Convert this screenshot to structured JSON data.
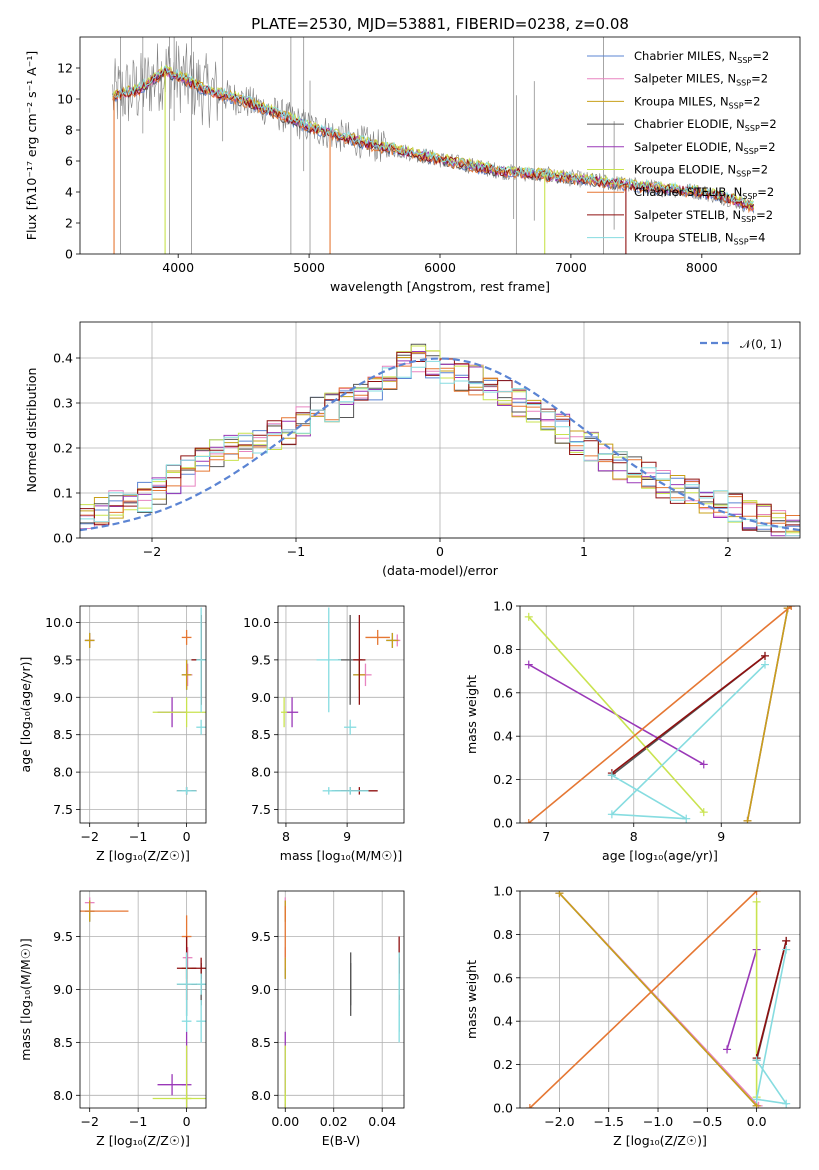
{
  "figure": {
    "title": "PLATE=2530, MJD=53881, FIBERID=0238, z=0.08"
  },
  "colors": {
    "Chabrier MILES": "#5b84d3",
    "Salpeter MILES": "#e884c0",
    "Kroupa MILES": "#c8a019",
    "Chabrier ELODIE": "#555555",
    "Salpeter ELODIE": "#9a38b8",
    "Kroupa ELODIE": "#c9e34f",
    "Chabrier STELIB": "#e57733",
    "Salpeter STELIB": "#8f1010",
    "Kroupa STELIB": "#86dce0",
    "data": "#808080",
    "normal": "#5b84d3"
  },
  "legend_items": [
    {
      "label": "Chabrier MILES, N",
      "sub": "SSP",
      "suffix": "=2",
      "color": "#5b84d3"
    },
    {
      "label": "Salpeter MILES, N",
      "sub": "SSP",
      "suffix": "=2",
      "color": "#e884c0"
    },
    {
      "label": "Kroupa MILES, N",
      "sub": "SSP",
      "suffix": "=2",
      "color": "#c8a019"
    },
    {
      "label": "Chabrier ELODIE, N",
      "sub": "SSP",
      "suffix": "=2",
      "color": "#555555"
    },
    {
      "label": "Salpeter ELODIE, N",
      "sub": "SSP",
      "suffix": "=2",
      "color": "#9a38b8"
    },
    {
      "label": "Kroupa ELODIE, N",
      "sub": "SSP",
      "suffix": "=2",
      "color": "#c9e34f"
    },
    {
      "label": "Chabrier STELIB, N",
      "sub": "SSP",
      "suffix": "=2",
      "color": "#e57733"
    },
    {
      "label": "Salpeter STELIB, N",
      "sub": "SSP",
      "suffix": "=2",
      "color": "#8f1010"
    },
    {
      "label": "Kroupa STELIB, N",
      "sub": "SSP",
      "suffix": "=4",
      "color": "#86dce0"
    }
  ],
  "chart_data": [
    {
      "id": "spectrum",
      "type": "line",
      "xlabel": "wavelength [Angstrom, rest frame]",
      "ylabel": "Flux [fλ10⁻¹⁷ erg cm⁻² s⁻¹ A⁻¹]",
      "xlim": [
        3250,
        8750
      ],
      "ylim": [
        0,
        14
      ],
      "xticks": [
        4000,
        5000,
        6000,
        7000,
        8000
      ],
      "yticks": [
        0,
        2,
        4,
        6,
        8,
        10,
        12
      ],
      "grid": false,
      "legend_position": "top-right",
      "continuum": {
        "x": [
          3500,
          3700,
          3900,
          4000,
          4200,
          4500,
          4800,
          5000,
          5200,
          5500,
          5800,
          6000,
          6300,
          6500,
          6800,
          7000,
          7300,
          7600,
          8000,
          8200,
          8400
        ],
        "y": [
          10.2,
          10.6,
          11.8,
          11.5,
          10.6,
          9.9,
          8.9,
          8.2,
          7.7,
          7.0,
          6.5,
          6.1,
          5.6,
          5.3,
          5.1,
          4.9,
          4.6,
          4.3,
          4.0,
          3.6,
          3.0
        ]
      },
      "data_spikes": [
        3560,
        3730,
        3934,
        3969,
        4102,
        4340,
        4861,
        4959,
        5007,
        6563,
        6583,
        6720,
        7250,
        7330
      ]
    },
    {
      "id": "residuals",
      "type": "step",
      "xlabel": "(data-model)/error",
      "ylabel": "Normed distribution",
      "xlim": [
        -2.5,
        2.5
      ],
      "ylim": [
        0,
        0.48
      ],
      "xticks": [
        -2,
        -1,
        0,
        1,
        2
      ],
      "yticks": [
        0.0,
        0.1,
        0.2,
        0.3,
        0.4
      ],
      "grid": true,
      "bin_edges_range": [
        -2.5,
        2.5
      ],
      "bin_count": 50,
      "base_distribution": [
        0.05,
        0.06,
        0.07,
        0.08,
        0.09,
        0.11,
        0.13,
        0.15,
        0.17,
        0.19,
        0.2,
        0.21,
        0.22,
        0.23,
        0.24,
        0.26,
        0.28,
        0.29,
        0.3,
        0.32,
        0.34,
        0.36,
        0.38,
        0.4,
        0.39,
        0.37,
        0.36,
        0.35,
        0.34,
        0.32,
        0.3,
        0.28,
        0.26,
        0.24,
        0.22,
        0.2,
        0.18,
        0.16,
        0.15,
        0.14,
        0.12,
        0.11,
        0.1,
        0.09,
        0.08,
        0.07,
        0.05,
        0.04,
        0.03,
        0.02
      ],
      "legend_label": "𝒩(0, 1)",
      "legend_position": "top-right"
    },
    {
      "id": "age_vs_Z",
      "type": "errorbar",
      "xlabel": "Z [log₁₀(Z/Z☉)]",
      "ylabel": "age  [log₁₀(age/yr)]",
      "xlim": [
        -2.2,
        0.4
      ],
      "ylim": [
        7.32,
        10.22
      ],
      "xticks": [
        -2,
        -1,
        0
      ],
      "yticks": [
        7.5,
        8.0,
        8.5,
        9.0,
        9.5,
        10.0
      ],
      "grid": true
    },
    {
      "id": "age_vs_mass",
      "type": "errorbar",
      "xlabel": "mass [log₁₀(M/M☉)]",
      "ylabel": "",
      "xlim": [
        7.87,
        9.93
      ],
      "ylim": [
        7.32,
        10.22
      ],
      "xticks": [
        8,
        9
      ],
      "yticks": [
        7.5,
        8.0,
        8.5,
        9.0,
        9.5,
        10.0
      ],
      "grid": true
    },
    {
      "id": "weight_vs_age",
      "type": "line",
      "xlabel": "age  [log₁₀(age/yr)]",
      "ylabel": "mass weight",
      "xlim": [
        6.7,
        9.9
      ],
      "ylim": [
        0,
        1
      ],
      "xticks": [
        7,
        8,
        9
      ],
      "yticks": [
        0.0,
        0.2,
        0.4,
        0.6,
        0.8,
        1.0
      ],
      "grid": true
    },
    {
      "id": "mass_vs_Z",
      "type": "errorbar",
      "xlabel": "Z [log₁₀(Z/Z☉)]",
      "ylabel": "mass [log₁₀(M/M☉)]",
      "xlim": [
        -2.2,
        0.4
      ],
      "ylim": [
        7.88,
        9.93
      ],
      "xticks": [
        -2,
        -1,
        0
      ],
      "yticks": [
        8.0,
        8.5,
        9.0,
        9.5
      ],
      "grid": true
    },
    {
      "id": "mass_vs_ebv",
      "type": "errorbar",
      "xlabel": "E(B-V)",
      "ylabel": "",
      "xlim": [
        -0.003,
        0.049
      ],
      "ylim": [
        7.88,
        9.93
      ],
      "xticks": [
        0.0,
        0.02,
        0.04
      ],
      "yticks": [
        8.0,
        8.5,
        9.0,
        9.5
      ],
      "grid": true
    },
    {
      "id": "weight_vs_Z",
      "type": "line",
      "xlabel": "Z [log₁₀(Z/Z☉)]",
      "ylabel": "mass weight",
      "xlim": [
        -2.4,
        0.44
      ],
      "ylim": [
        0,
        1
      ],
      "xticks": [
        -2.0,
        -1.5,
        -1.0,
        -0.5,
        0.0
      ],
      "yticks": [
        0.0,
        0.2,
        0.4,
        0.6,
        0.8,
        1.0
      ],
      "grid": true
    }
  ],
  "models": [
    {
      "name": "Chabrier MILES",
      "Z": [
        -2.0,
        0.0
      ],
      "age": [
        9.76,
        9.3
      ],
      "mass": [
        9.74,
        9.2
      ],
      "ebv": 0.0,
      "w": [
        0.99,
        0.01
      ],
      "ageErr": [
        0.1,
        0.2
      ],
      "ZErr": [
        0.1,
        0.1
      ],
      "massErr": [
        0.1,
        0.1
      ]
    },
    {
      "name": "Salpeter MILES",
      "Z": [
        -2.0,
        0.02
      ],
      "age": [
        9.76,
        9.3
      ],
      "mass": [
        9.82,
        9.3
      ],
      "ebv": 0.0,
      "w": [
        0.99,
        0.01
      ],
      "ageErr": [
        0.08,
        0.15
      ],
      "ZErr": [
        0.1,
        0.1
      ],
      "massErr": [
        0.05,
        0.1
      ]
    },
    {
      "name": "Kroupa MILES",
      "Z": [
        -2.0,
        0.0
      ],
      "age": [
        9.76,
        9.3
      ],
      "mass": [
        9.74,
        9.2
      ],
      "ebv": 0.0,
      "w": [
        0.99,
        0.01
      ],
      "ageErr": [
        0.1,
        0.2
      ],
      "ZErr": [
        0.1,
        0.1
      ],
      "massErr": [
        0.1,
        0.1
      ]
    },
    {
      "name": "Chabrier ELODIE",
      "Z": [
        0.0,
        0.3
      ],
      "age": [
        7.75,
        9.5
      ],
      "mass": [
        9.05,
        9.05
      ],
      "ebv": 0.027,
      "w": [
        0.22,
        0.77
      ],
      "ageErr": [
        0.05,
        0.6
      ],
      "ZErr": [
        0.2,
        0.2
      ],
      "massErr": [
        0.3,
        0.2
      ]
    },
    {
      "name": "Salpeter ELODIE",
      "Z": [
        -0.3,
        0.0
      ],
      "age": [
        8.8,
        6.8
      ],
      "mass": [
        8.1,
        8.1
      ],
      "ebv": 0.0,
      "w": [
        0.27,
        0.73
      ],
      "ageErr": [
        0.2,
        0.1
      ],
      "ZErr": [
        0.3,
        0.1
      ],
      "massErr": [
        0.1,
        0.5
      ]
    },
    {
      "name": "Kroupa ELODIE",
      "Z": [
        0.0,
        0.0
      ],
      "age": [
        8.8,
        6.8
      ],
      "mass": [
        7.97,
        7.97
      ],
      "ebv": 0.0,
      "w": [
        0.05,
        0.95
      ],
      "ageErr": [
        0.2,
        0.1
      ],
      "ZErr": [
        0.7,
        0.1
      ],
      "massErr": [
        0.05,
        0.5
      ]
    },
    {
      "name": "Chabrier STELIB",
      "Z": [
        -2.3,
        0.0
      ],
      "age": [
        6.8,
        9.8
      ],
      "mass": [
        9.74,
        9.5
      ],
      "ebv": 0.0,
      "w": [
        0.0,
        1.0
      ],
      "ageErr": [
        0.1,
        0.1
      ],
      "ZErr": [
        1.1,
        0.1
      ],
      "massErr": [
        0.05,
        0.2
      ]
    },
    {
      "name": "Salpeter STELIB",
      "Z": [
        0.0,
        0.3
      ],
      "age": [
        7.75,
        9.5
      ],
      "mass": [
        9.2,
        9.2
      ],
      "ebv": 0.047,
      "w": [
        0.23,
        0.77
      ],
      "ageErr": [
        0.05,
        0.6
      ],
      "ZErr": [
        0.2,
        0.2
      ],
      "massErr": [
        0.3,
        0.1
      ]
    },
    {
      "name": "Kroupa STELIB",
      "Z": [
        0.0,
        0.3,
        0.0,
        0.3
      ],
      "age": [
        7.75,
        8.6,
        7.75,
        9.5
      ],
      "mass": [
        9.05,
        9.05,
        8.7,
        8.7
      ],
      "ebv": 0.047,
      "w": [
        0.22,
        0.02,
        0.04,
        0.73
      ],
      "ageErr": [
        0.05,
        0.1,
        0.05,
        0.7
      ],
      "ZErr": [
        0.2,
        0.1,
        0.1,
        0.1
      ],
      "massErr": [
        0.3,
        0.1,
        0.1,
        0.2
      ]
    }
  ]
}
